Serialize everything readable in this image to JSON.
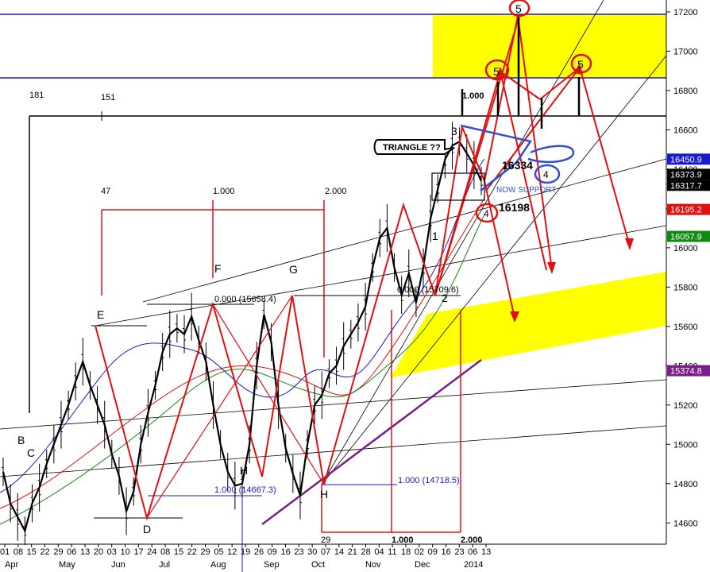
{
  "chart_data": {
    "type": "line",
    "title": "",
    "xlabel": "",
    "ylabel": "",
    "ylim": [
      14500,
      17250
    ],
    "y_ticks": [
      14600,
      14800,
      15000,
      15200,
      15400,
      15600,
      15800,
      16000,
      16200,
      16400,
      16600,
      16800,
      17000,
      17200
    ],
    "y_tick_labels": [
      "14600",
      "14800",
      "15000",
      "15200",
      "15400",
      "15600",
      "15800",
      "16000",
      "16200",
      "16400",
      "16600",
      "16800",
      "17000",
      "17200"
    ],
    "x_day_labels": [
      "01",
      "08",
      "15",
      "22",
      "29",
      "06",
      "13",
      "20",
      "03",
      "10",
      "17",
      "24",
      "08",
      "15",
      "22",
      "29",
      "05",
      "12",
      "19",
      "26",
      "09",
      "16",
      "23",
      "30",
      "07",
      "14",
      "21",
      "28",
      "04",
      "11",
      "18",
      "02",
      "09",
      "16",
      "23",
      "06",
      "13"
    ],
    "x_month_labels": [
      "Apr",
      "May",
      "Jun",
      "Jul",
      "Aug",
      "Sep",
      "Oct",
      "Nov",
      "Dec",
      "2014"
    ],
    "price_boxes": [
      {
        "value": 16450.9,
        "text": "16450.9",
        "color": "#1a1acc"
      },
      {
        "value": 16373.9,
        "text": "16373.9",
        "color": "#000000"
      },
      {
        "value": 16317.7,
        "text": "16317.7",
        "color": "#000000"
      },
      {
        "value": 16195.2,
        "text": "16195.2",
        "color": "#e01010"
      },
      {
        "value": 16057.9,
        "text": "16057.9",
        "color": "#108a10"
      },
      {
        "value": 15374.8,
        "text": "15374.8",
        "color": "#7a1f8a"
      }
    ],
    "series": [
      {
        "values": [
          14860,
          14700,
          14630,
          14560,
          14700,
          14780,
          14900,
          15000,
          15100,
          15200,
          15320,
          15420,
          15300,
          15200,
          15100,
          14950,
          14840,
          14660,
          14760,
          15000,
          15160,
          15300,
          15470,
          15560,
          15590,
          15560,
          15650,
          15530,
          15420,
          15200,
          15000,
          14860,
          14790,
          14800,
          15000,
          15400,
          15660,
          15520,
          15200,
          14980,
          14850,
          14740,
          15000,
          15200,
          15250,
          15360,
          15400,
          15500,
          15560,
          15620,
          15700,
          15900,
          16050,
          16100,
          15900,
          15760,
          15870,
          15720,
          15900,
          16150,
          16300,
          16450,
          16520,
          16540,
          16480,
          16420,
          16340
        ]
      }
    ],
    "annotations": {
      "wave_labels": [
        "B",
        "C",
        "D",
        "E",
        "F",
        "G",
        "H",
        "H",
        "1",
        "2",
        "3",
        "4",
        "4",
        "5",
        "5",
        "5"
      ],
      "numbers_top": [
        "181",
        "151"
      ],
      "fib_top": [
        "47",
        "1.000",
        "2.000"
      ],
      "fib_bottom": [
        "29",
        "1.000",
        "2.000"
      ],
      "fib_right": "1.000",
      "fib_texts": [
        "0.000 (15658.4)",
        "0.000 (15709.6)",
        "1.000 (14667.3)",
        "1.000 (14718.5)"
      ],
      "triangle": "TRIANGLE ??",
      "now_support": "NOW SUPPORT",
      "level_16334": "16334",
      "level_16198": "16198"
    }
  }
}
